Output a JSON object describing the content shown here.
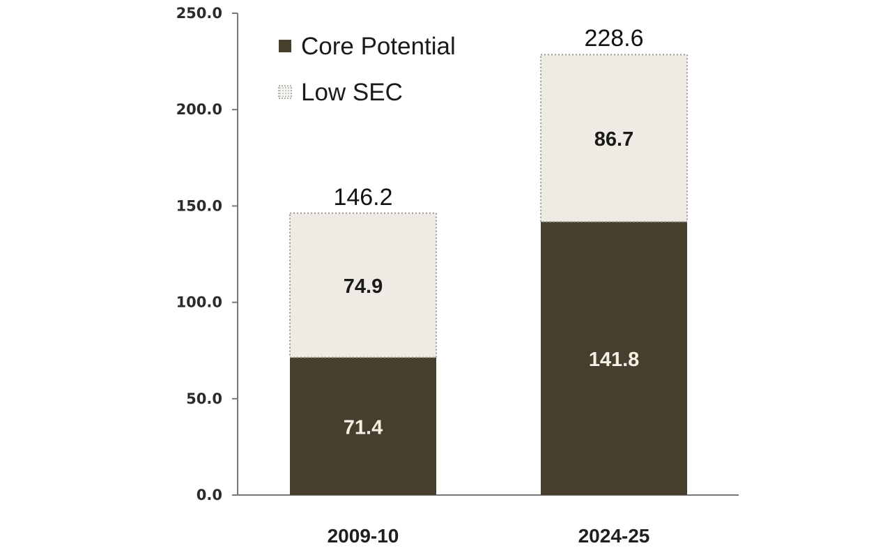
{
  "chart_data": {
    "type": "bar",
    "stacked": true,
    "categories": [
      "2009-10",
      "2024-25"
    ],
    "series": [
      {
        "name": "Core Potential",
        "values": [
          71.4,
          141.8
        ],
        "color": "#473f2d",
        "label_color": "#f3f0e6"
      },
      {
        "name": "Low SEC",
        "values": [
          74.9,
          86.7
        ],
        "color": "#edebe3",
        "label_color": "#1a1a1a",
        "border": "dotted"
      }
    ],
    "series_labels": [
      [
        "71.4",
        "141.8"
      ],
      [
        "74.9",
        "86.7"
      ]
    ],
    "totals": [
      146.2,
      228.6
    ],
    "total_labels": [
      "146.2",
      "228.6"
    ],
    "y_ticks": [
      0,
      50,
      100,
      150,
      200,
      250
    ],
    "y_tick_labels": [
      "0.0",
      "50.0",
      "100.0",
      "150.0",
      "200.0",
      "250.0"
    ],
    "ylim": [
      0,
      250
    ],
    "grid": false,
    "legend": "top-left"
  }
}
